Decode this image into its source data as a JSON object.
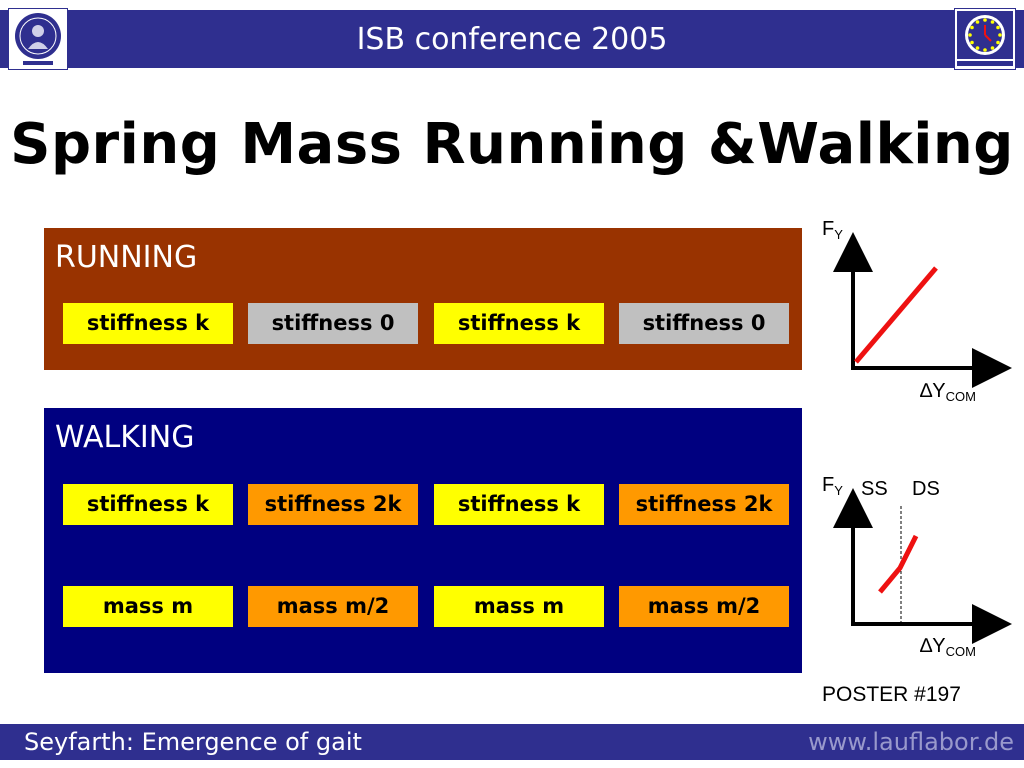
{
  "header": {
    "title": "ISB conference 2005",
    "left_logo_icon": "university-seal-icon",
    "right_logo_icon": "eu-stars-clock-icon"
  },
  "slide": {
    "title": "Spring Mass Running &Walking"
  },
  "running": {
    "label": "RUNNING",
    "pills": [
      "stiffness k",
      "stiffness 0",
      "stiffness k",
      "stiffness 0"
    ]
  },
  "walking": {
    "label": "WALKING",
    "stiffness_pills": [
      "stiffness k",
      "stiffness 2k",
      "stiffness k",
      "stiffness 2k"
    ],
    "mass_pills": [
      "mass m",
      "mass m/2",
      "mass m",
      "mass m/2"
    ]
  },
  "graphs": {
    "top": {
      "y_label": "F",
      "y_sub": "Y",
      "x_prefix": "∆Y",
      "x_sub": "COM"
    },
    "bottom": {
      "y_label": "F",
      "y_sub": "Y",
      "x_prefix": "∆Y",
      "x_sub": "COM",
      "phase_ss": "SS",
      "phase_ds": "DS"
    }
  },
  "poster": "POSTER #197",
  "footer": {
    "left": "Seyfarth: Emergence of gait",
    "right": "www.lauflabor.de"
  },
  "colors": {
    "header_bar": "#2f2f8f",
    "running_bg": "#993300",
    "walking_bg": "#000080",
    "yellow": "#ffff00",
    "gray": "#c0c0c0",
    "orange": "#ff9900",
    "graph_line": "#ee1111"
  }
}
